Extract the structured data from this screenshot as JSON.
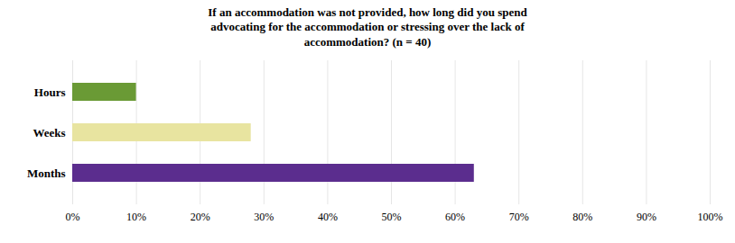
{
  "chart_data": {
    "type": "bar",
    "orientation": "horizontal",
    "title": "If an accommodation was not provided, how long did you spend\nadvocating for the accommodation or stressing over the lack of\naccommodation? (n = 40)",
    "categories": [
      "Hours",
      "Weeks",
      "Months"
    ],
    "values": [
      0.1,
      0.28,
      0.63
    ],
    "colors": [
      "#6a9a35",
      "#e8e4a0",
      "#5b2d8e"
    ],
    "xlim": [
      0,
      1.0
    ],
    "xticks": [
      {
        "value": 0,
        "label": "0%"
      },
      {
        "value": 0.1,
        "label": "10%"
      },
      {
        "value": 0.2,
        "label": "20%"
      },
      {
        "value": 0.3,
        "label": "30%"
      },
      {
        "value": 0.4,
        "label": "40%"
      },
      {
        "value": 0.5,
        "label": "50%"
      },
      {
        "value": 0.6,
        "label": "60%"
      },
      {
        "value": 0.7,
        "label": "70%"
      },
      {
        "value": 0.8,
        "label": "80%"
      },
      {
        "value": 0.9,
        "label": "90%"
      },
      {
        "value": 1.0,
        "label": "100%"
      }
    ],
    "grid": true
  }
}
